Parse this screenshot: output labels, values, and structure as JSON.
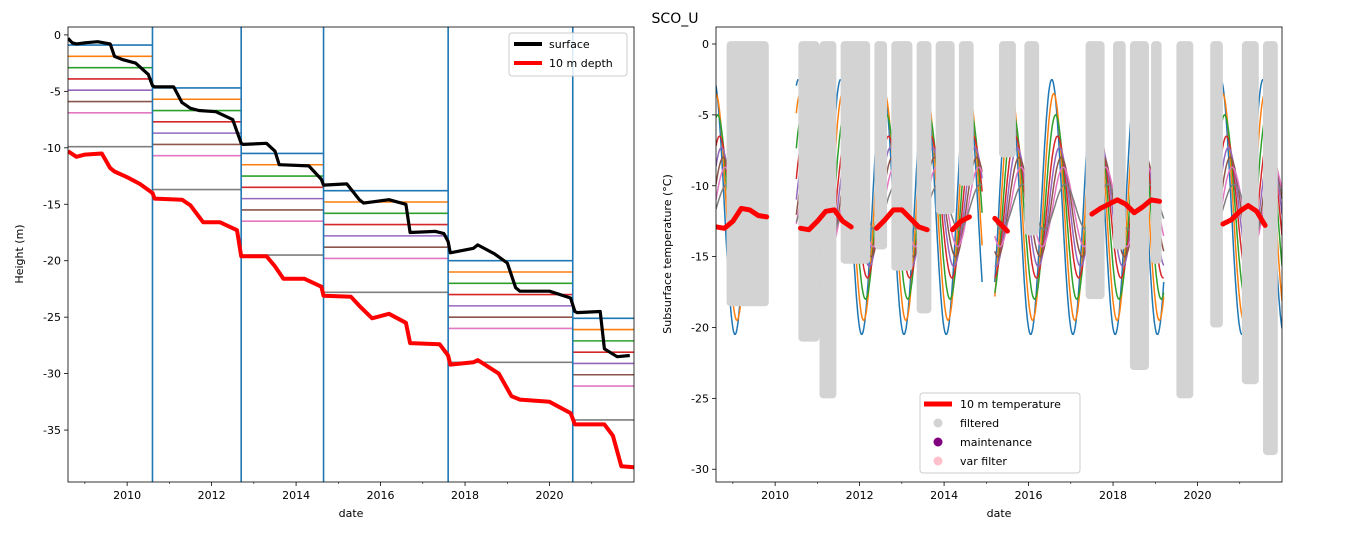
{
  "figure": {
    "suptitle": "SCO_U"
  },
  "chart_data": [
    {
      "type": "line",
      "xlabel": "date",
      "ylabel": "Height (m)",
      "xlim": [
        2008.6,
        2022.0
      ],
      "ylim": [
        -39.6,
        0.7
      ],
      "xticks": [
        2010,
        2012,
        2014,
        2016,
        2018,
        2020
      ],
      "yticks": [
        0,
        -5,
        -10,
        -15,
        -20,
        -25,
        -30,
        -35
      ],
      "legend_position": "upper right",
      "grid": false,
      "legend": [
        {
          "label": "surface",
          "color": "#000000"
        },
        {
          "label": "10 m depth",
          "color": "#ff0000"
        }
      ],
      "surface": {
        "name": "surface",
        "color": "#000000",
        "x": [
          2008.6,
          2008.7,
          2008.8,
          2009.0,
          2009.3,
          2009.6,
          2009.7,
          2009.9,
          2010.2,
          2010.5,
          2010.6,
          2010.65,
          2011.1,
          2011.3,
          2011.5,
          2011.7,
          2012.1,
          2012.5,
          2012.7,
          2012.75,
          2013.3,
          2013.5,
          2013.6,
          2014.3,
          2014.6,
          2014.65,
          2015.2,
          2015.5,
          2015.6,
          2016.2,
          2016.6,
          2016.7,
          2017.3,
          2017.5,
          2017.6,
          2017.65,
          2018.2,
          2018.3,
          2018.7,
          2019.0,
          2019.2,
          2019.3,
          2020.0,
          2020.5,
          2020.6,
          2020.65,
          2021.2,
          2021.3,
          2021.6,
          2021.9
        ],
        "y": [
          -0.3,
          -0.7,
          -0.8,
          -0.7,
          -0.6,
          -0.8,
          -1.9,
          -2.2,
          -2.5,
          -3.5,
          -4.5,
          -4.6,
          -4.6,
          -6.0,
          -6.5,
          -6.7,
          -6.8,
          -7.5,
          -9.6,
          -9.7,
          -9.6,
          -10.3,
          -11.5,
          -11.6,
          -12.8,
          -13.3,
          -13.2,
          -14.6,
          -14.9,
          -14.6,
          -15.0,
          -17.5,
          -17.4,
          -17.6,
          -18.3,
          -19.3,
          -18.9,
          -18.6,
          -19.4,
          -20.2,
          -22.4,
          -22.7,
          -22.7,
          -23.3,
          -24.5,
          -24.6,
          -24.5,
          -27.8,
          -28.5,
          -28.4
        ]
      },
      "depth10m": {
        "name": "10 m depth",
        "color": "#ff0000",
        "x": [
          2008.6,
          2008.8,
          2009.0,
          2009.4,
          2009.6,
          2009.7,
          2010.0,
          2010.3,
          2010.6,
          2010.65,
          2011.3,
          2011.5,
          2011.8,
          2012.2,
          2012.6,
          2012.7,
          2013.3,
          2013.5,
          2013.7,
          2014.2,
          2014.6,
          2014.65,
          2015.3,
          2015.5,
          2015.8,
          2016.2,
          2016.6,
          2016.7,
          2017.4,
          2017.6,
          2017.65,
          2018.2,
          2018.3,
          2018.8,
          2019.1,
          2019.3,
          2020.0,
          2020.5,
          2020.6,
          2021.3,
          2021.5,
          2021.7,
          2022.0
        ],
        "y": [
          -10.3,
          -10.8,
          -10.6,
          -10.5,
          -11.8,
          -12.1,
          -12.6,
          -13.2,
          -14.0,
          -14.5,
          -14.6,
          -15.1,
          -16.6,
          -16.6,
          -17.3,
          -19.6,
          -19.6,
          -20.5,
          -21.6,
          -21.6,
          -22.3,
          -23.1,
          -23.2,
          -24.0,
          -25.1,
          -24.7,
          -25.5,
          -27.3,
          -27.4,
          -28.4,
          -29.2,
          -29.0,
          -28.8,
          -30.0,
          -32.0,
          -32.3,
          -32.5,
          -33.5,
          -34.5,
          -34.5,
          -35.5,
          -38.2,
          -38.3
        ]
      },
      "installations": [
        2010.6,
        2012.7,
        2014.65,
        2017.6,
        2020.55
      ],
      "sensor_colors": [
        "#1f77b4",
        "#ff7f0e",
        "#2ca02c",
        "#d62728",
        "#9467bd",
        "#8c564b",
        "#e377c2",
        "#7f7f7f"
      ],
      "sensor_depths": [
        {
          "from": 2008.6,
          "to": 2010.6,
          "y": [
            -0.9,
            -1.9,
            -2.9,
            -3.9,
            -4.9,
            -5.9,
            -6.9,
            -9.9
          ]
        },
        {
          "from": 2010.6,
          "to": 2012.7,
          "y": [
            -4.7,
            -5.7,
            -6.7,
            -7.7,
            -8.7,
            -9.7,
            -10.7,
            -13.7
          ]
        },
        {
          "from": 2012.7,
          "to": 2014.65,
          "y": [
            -10.5,
            -11.5,
            -12.5,
            -13.5,
            -14.5,
            -15.5,
            -16.5,
            -19.5
          ]
        },
        {
          "from": 2014.65,
          "to": 2017.6,
          "y": [
            -13.8,
            -14.8,
            -15.8,
            -16.8,
            -17.8,
            -18.8,
            -19.8,
            -22.8
          ]
        },
        {
          "from": 2017.6,
          "to": 2020.55,
          "y": [
            -20.0,
            -21.0,
            -22.0,
            -23.0,
            -24.0,
            -25.0,
            -26.0,
            -29.0
          ]
        },
        {
          "from": 2020.55,
          "to": 2022.0,
          "y": [
            -25.1,
            -26.1,
            -27.1,
            -28.1,
            -29.1,
            -30.1,
            -31.1,
            -34.1
          ]
        }
      ]
    },
    {
      "type": "line",
      "xlabel": "date",
      "ylabel": "Subsurface temperature (°C)",
      "xlim": [
        2008.6,
        2022.0
      ],
      "ylim": [
        -30.9,
        1.2
      ],
      "xticks": [
        2010,
        2012,
        2014,
        2016,
        2018,
        2020
      ],
      "yticks": [
        0,
        -5,
        -10,
        -15,
        -20,
        -25,
        -30
      ],
      "legend_position": "lower center",
      "grid": false,
      "legend": [
        {
          "label": "10 m temperature",
          "color": "#ff0000",
          "kind": "line"
        },
        {
          "label": "filtered",
          "color": "#d3d3d3",
          "kind": "marker"
        },
        {
          "label": "maintenance",
          "color": "#800080",
          "kind": "marker"
        },
        {
          "label": "var filter",
          "color": "#ffc0cb",
          "kind": "marker"
        }
      ],
      "sensor_colors": [
        "#1f77b4",
        "#ff7f0e",
        "#2ca02c",
        "#d62728",
        "#9467bd",
        "#8c564b",
        "#e377c2",
        "#7f7f7f"
      ],
      "sensor_amplitudes": [
        9.0,
        8.0,
        6.5,
        5.0,
        4.2,
        3.5,
        2.8,
        1.6
      ],
      "sensor_mean": -11.5,
      "data_segments": [
        [
          2008.6,
          2009.8
        ],
        [
          2010.5,
          2014.9
        ],
        [
          2015.2,
          2019.2
        ],
        [
          2020.4,
          2022.0
        ]
      ],
      "filtered_bands": [
        {
          "from": 2008.85,
          "to": 2009.85,
          "low": -18.5
        },
        {
          "from": 2010.55,
          "to": 2011.05,
          "low": -21.0
        },
        {
          "from": 2011.05,
          "to": 2011.45,
          "low": -25.0
        },
        {
          "from": 2011.55,
          "to": 2012.25,
          "low": -15.5
        },
        {
          "from": 2012.35,
          "to": 2012.65,
          "low": -14.5
        },
        {
          "from": 2012.75,
          "to": 2013.25,
          "low": -16.0
        },
        {
          "from": 2013.35,
          "to": 2013.7,
          "low": -19.0
        },
        {
          "from": 2013.8,
          "to": 2014.25,
          "low": -12.0
        },
        {
          "from": 2014.35,
          "to": 2014.7,
          "low": -10.0
        },
        {
          "from": 2015.3,
          "to": 2015.7,
          "low": -8.0
        },
        {
          "from": 2015.9,
          "to": 2016.25,
          "low": -13.5
        },
        {
          "from": 2017.35,
          "to": 2017.8,
          "low": -18.0
        },
        {
          "from": 2018.0,
          "to": 2018.3,
          "low": -14.5
        },
        {
          "from": 2018.4,
          "to": 2018.85,
          "low": -23.0
        },
        {
          "from": 2018.9,
          "to": 2019.15,
          "low": -15.5
        },
        {
          "from": 2019.5,
          "to": 2019.9,
          "low": -25.0
        },
        {
          "from": 2020.3,
          "to": 2020.6,
          "low": -20.0
        },
        {
          "from": 2021.05,
          "to": 2021.45,
          "low": -24.0
        },
        {
          "from": 2021.55,
          "to": 2021.9,
          "low": -29.0
        }
      ],
      "temp10m": {
        "name": "10 m temperature",
        "color": "#ff0000",
        "segments": [
          {
            "x": [
              2008.6,
              2008.8,
              2009.0,
              2009.2,
              2009.4,
              2009.6,
              2009.8
            ],
            "y": [
              -12.9,
              -13.0,
              -12.5,
              -11.6,
              -11.7,
              -12.1,
              -12.2
            ]
          },
          {
            "x": [
              2010.6,
              2010.8,
              2011.0,
              2011.2,
              2011.4,
              2011.6,
              2011.8
            ],
            "y": [
              -13.0,
              -13.1,
              -12.5,
              -11.8,
              -11.7,
              -12.5,
              -12.9
            ]
          },
          {
            "x": [
              2012.4,
              2012.6,
              2012.8,
              2013.0,
              2013.2,
              2013.4,
              2013.6
            ],
            "y": [
              -13.0,
              -12.4,
              -11.7,
              -11.7,
              -12.3,
              -12.9,
              -13.1
            ]
          },
          {
            "x": [
              2014.2,
              2014.4,
              2014.6
            ],
            "y": [
              -13.1,
              -12.5,
              -12.2
            ]
          },
          {
            "x": [
              2015.2,
              2015.4,
              2015.5
            ],
            "y": [
              -12.3,
              -12.9,
              -13.2
            ]
          },
          {
            "x": [
              2017.5,
              2017.7,
              2017.9,
              2018.1,
              2018.3,
              2018.5,
              2018.7,
              2018.9,
              2019.1
            ],
            "y": [
              -12.0,
              -11.6,
              -11.3,
              -11.0,
              -11.3,
              -11.9,
              -11.5,
              -11.0,
              -11.1
            ]
          },
          {
            "x": [
              2020.6,
              2020.8,
              2021.0,
              2021.2,
              2021.4,
              2021.6
            ],
            "y": [
              -12.7,
              -12.4,
              -11.8,
              -11.4,
              -11.8,
              -12.8
            ]
          }
        ]
      }
    }
  ]
}
